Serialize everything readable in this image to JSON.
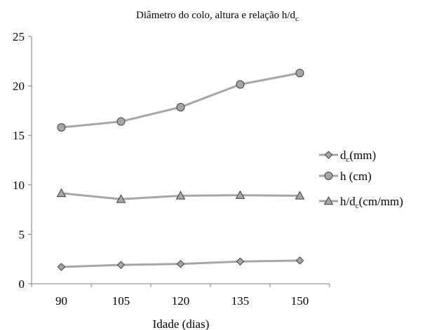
{
  "chart_data": {
    "type": "line",
    "title": {
      "pre": "Diâmetro do colo, altura e relação  h/d",
      "sub": "c"
    },
    "xlabel": "Idade (dias)",
    "ylabel": "",
    "x": [
      "90",
      "105",
      "120",
      "135",
      "150"
    ],
    "ylim": [
      0,
      25
    ],
    "yticks": [
      "0",
      "5",
      "10",
      "15",
      "20",
      "25"
    ],
    "grid": false,
    "legend_position": "right",
    "line_color": "#a6a6a6",
    "marker_fill": "#a6a6a6",
    "series": [
      {
        "legend": {
          "pre": "d",
          "sub": "c",
          "post": "(mm)"
        },
        "marker": "diamond",
        "values": [
          1.7,
          1.9,
          2.0,
          2.25,
          2.35
        ]
      },
      {
        "legend": {
          "pre": "h (cm)",
          "sub": "",
          "post": ""
        },
        "marker": "circle",
        "values": [
          15.8,
          16.4,
          17.85,
          20.15,
          21.3
        ]
      },
      {
        "legend": {
          "pre": "h/d",
          "sub": "c",
          "post": "(cm/mm)"
        },
        "marker": "triangle",
        "values": [
          9.15,
          8.55,
          8.9,
          8.95,
          8.9
        ]
      }
    ]
  }
}
